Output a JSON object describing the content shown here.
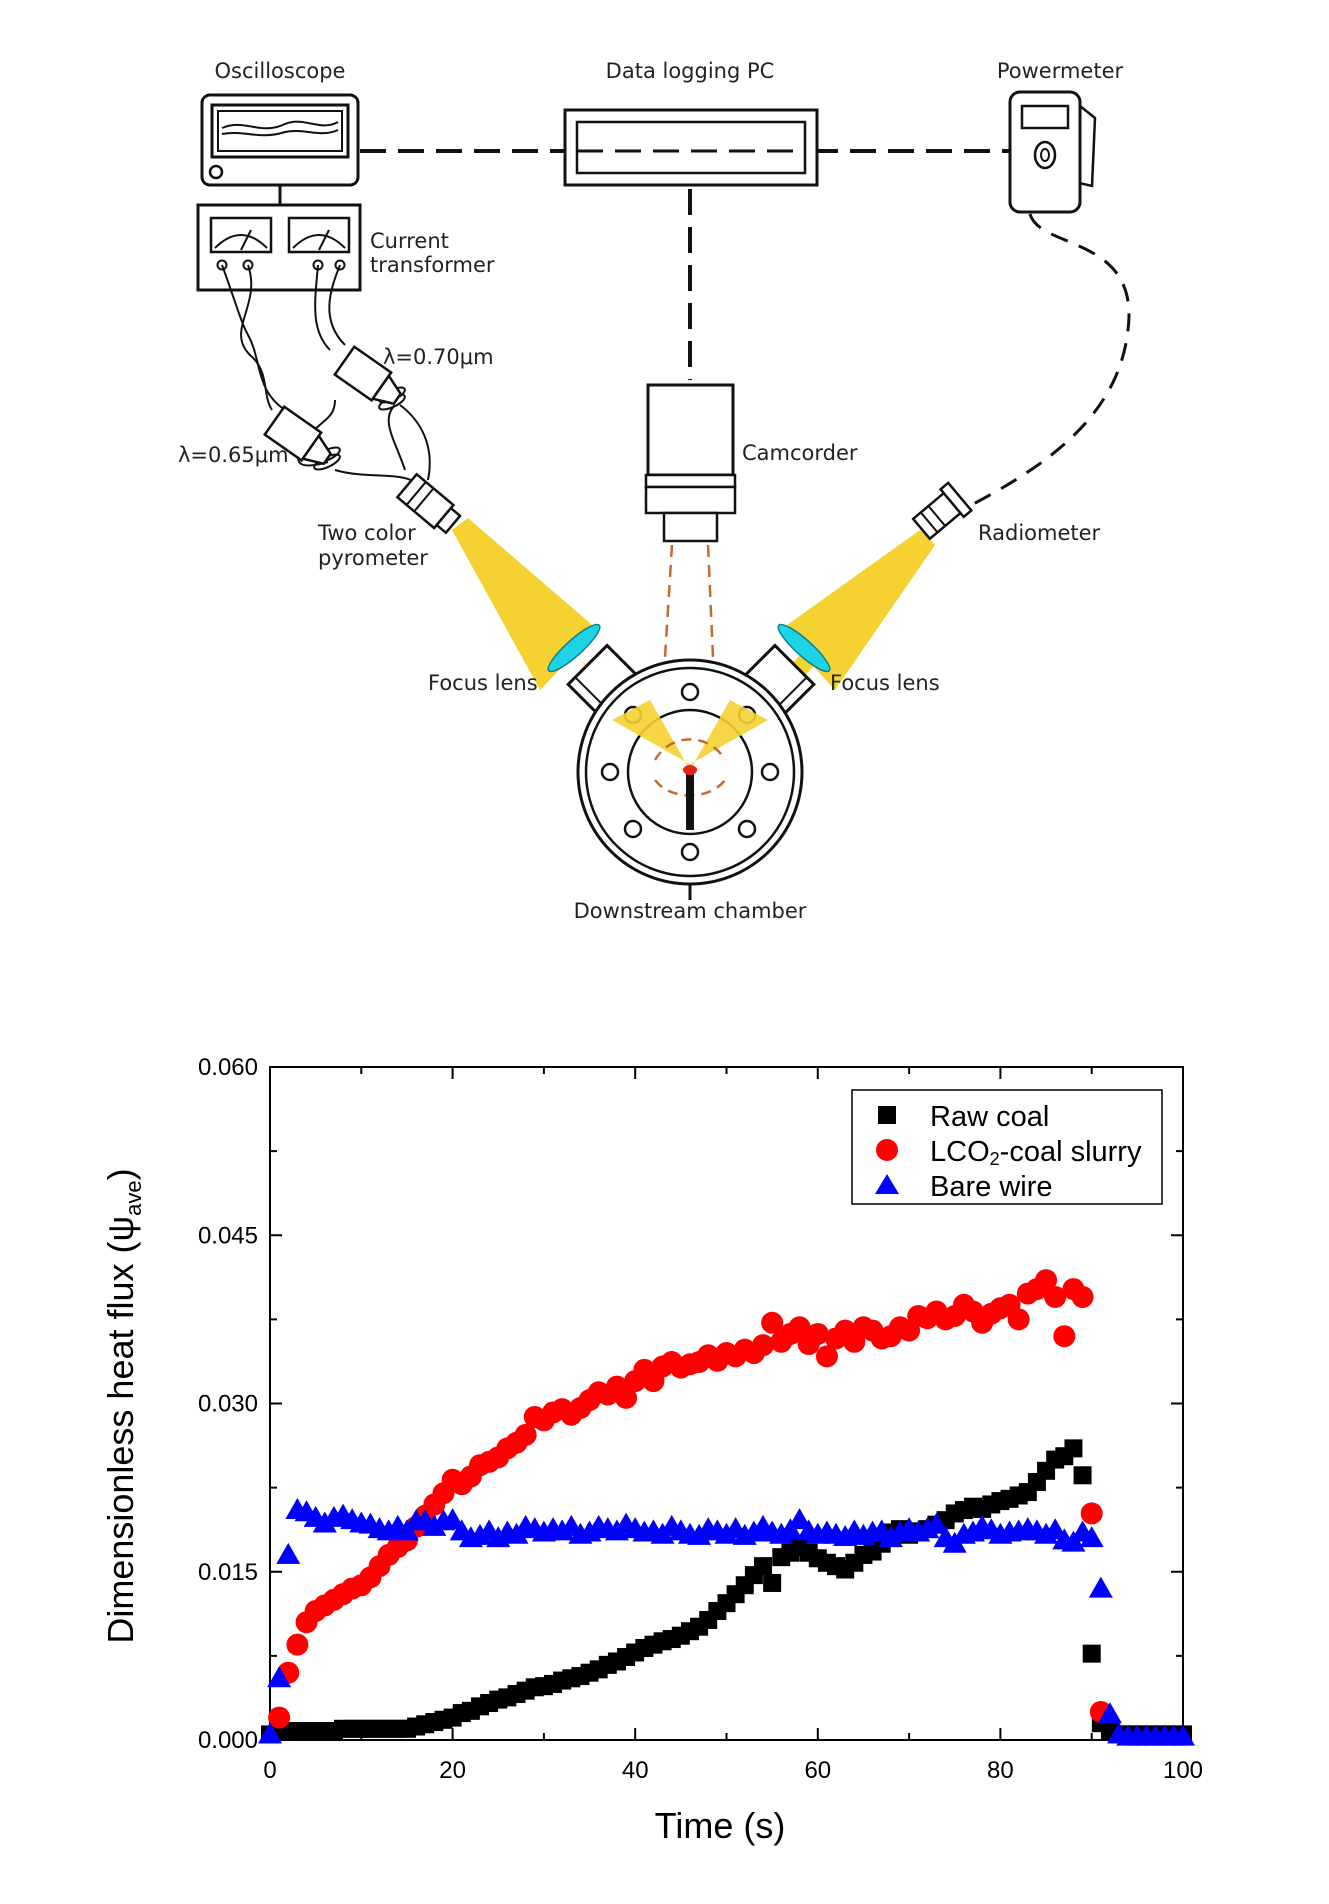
{
  "schematic": {
    "oscilloscope": "Oscilloscope",
    "data_logging_pc": "Data logging PC",
    "powermeter": "Powermeter",
    "current_transformer_line1": "Current",
    "current_transformer_line2": "transformer",
    "lambda_070": "λ=0.70μm",
    "lambda_065": "λ=0.65μm",
    "camcorder": "Camcorder",
    "radiometer": "Radiometer",
    "pyrometer_line1": "Two color",
    "pyrometer_line2": "pyrometer",
    "focus_lens_left": "Focus lens",
    "focus_lens_right": "Focus lens",
    "downstream_chamber": "Downstream chamber"
  },
  "chart_data": {
    "type": "scatter",
    "xlabel": "Time (s)",
    "ylabel_prefix": "Dimensionless heat flux (ψ",
    "ylabel_sub": "ave",
    "ylabel_suffix": ")",
    "xlim": [
      0,
      100
    ],
    "ylim": [
      0,
      0.06
    ],
    "xticks": [
      "0",
      "20",
      "40",
      "60",
      "80",
      "100"
    ],
    "yticks": [
      "0.000",
      "0.015",
      "0.030",
      "0.045",
      "0.060"
    ],
    "legend_position": "top-right",
    "legend_labels": [
      "Raw coal",
      "LCO",
      "2",
      "-coal slurry",
      "Bare wire"
    ],
    "series": [
      {
        "name": "Raw coal",
        "marker": "square",
        "color": "#000000",
        "x": [
          0,
          1,
          2,
          3,
          4,
          5,
          6,
          7,
          8,
          9,
          10,
          11,
          12,
          13,
          14,
          15,
          16,
          17,
          18,
          19,
          20,
          21,
          22,
          23,
          24,
          25,
          26,
          27,
          28,
          29,
          30,
          31,
          32,
          33,
          34,
          35,
          36,
          37,
          38,
          39,
          40,
          41,
          42,
          43,
          44,
          45,
          46,
          47,
          48,
          49,
          50,
          51,
          52,
          53,
          54,
          55,
          56,
          57,
          58,
          59,
          60,
          61,
          62,
          63,
          64,
          65,
          66,
          67,
          68,
          69,
          70,
          71,
          72,
          73,
          74,
          75,
          76,
          77,
          78,
          79,
          80,
          81,
          82,
          83,
          84,
          85,
          86,
          87,
          88,
          89,
          90,
          91,
          92,
          93,
          94,
          95,
          96,
          97,
          98,
          99,
          100
        ],
        "y": [
          0.0005,
          0.0008,
          0.0008,
          0.0008,
          0.0008,
          0.0008,
          0.0008,
          0.0008,
          0.001,
          0.001,
          0.001,
          0.001,
          0.001,
          0.001,
          0.001,
          0.001,
          0.0012,
          0.0014,
          0.0016,
          0.0018,
          0.002,
          0.0024,
          0.0026,
          0.003,
          0.0033,
          0.0036,
          0.0038,
          0.0041,
          0.0044,
          0.0047,
          0.0048,
          0.005,
          0.0053,
          0.0055,
          0.0057,
          0.006,
          0.0063,
          0.0067,
          0.007,
          0.0074,
          0.0078,
          0.0082,
          0.0085,
          0.0088,
          0.009,
          0.0093,
          0.0097,
          0.0101,
          0.0107,
          0.0115,
          0.0122,
          0.013,
          0.0138,
          0.0147,
          0.0155,
          0.014,
          0.0163,
          0.0167,
          0.0172,
          0.0167,
          0.0162,
          0.0158,
          0.0155,
          0.0152,
          0.0158,
          0.0165,
          0.0168,
          0.0175,
          0.0185,
          0.0188,
          0.0183,
          0.0186,
          0.0188,
          0.0192,
          0.0196,
          0.0202,
          0.0205,
          0.0208,
          0.0206,
          0.021,
          0.0213,
          0.0215,
          0.0218,
          0.0221,
          0.023,
          0.024,
          0.025,
          0.0253,
          0.026,
          0.0236,
          0.0077,
          0.0015,
          0.0008,
          0.0005,
          0.0005,
          0.0005,
          0.0005,
          0.0005,
          0.0005,
          0.0005,
          0.0005
        ]
      },
      {
        "name": "LCO2-coal slurry",
        "marker": "circle",
        "color": "#ff0000",
        "x": [
          1,
          2,
          3,
          4,
          5,
          6,
          7,
          8,
          9,
          10,
          11,
          12,
          13,
          14,
          15,
          16,
          17,
          18,
          19,
          20,
          21,
          22,
          23,
          24,
          25,
          26,
          27,
          28,
          29,
          30,
          31,
          32,
          33,
          34,
          35,
          36,
          37,
          38,
          39,
          40,
          41,
          42,
          43,
          44,
          45,
          46,
          47,
          48,
          49,
          50,
          51,
          52,
          53,
          54,
          55,
          56,
          57,
          58,
          59,
          60,
          61,
          62,
          63,
          64,
          65,
          66,
          67,
          68,
          69,
          70,
          71,
          72,
          73,
          74,
          75,
          76,
          77,
          78,
          79,
          80,
          81,
          82,
          83,
          84,
          85,
          86,
          87,
          88,
          89,
          90,
          91
        ],
        "y": [
          0.002,
          0.006,
          0.0085,
          0.0105,
          0.0115,
          0.012,
          0.0125,
          0.013,
          0.0135,
          0.0138,
          0.0145,
          0.0155,
          0.0165,
          0.0172,
          0.0178,
          0.019,
          0.02,
          0.021,
          0.022,
          0.0232,
          0.0228,
          0.0235,
          0.0245,
          0.0248,
          0.0252,
          0.026,
          0.0265,
          0.0272,
          0.0288,
          0.0285,
          0.0292,
          0.0295,
          0.029,
          0.0296,
          0.0303,
          0.031,
          0.0308,
          0.0315,
          0.0305,
          0.032,
          0.033,
          0.032,
          0.0333,
          0.0337,
          0.0332,
          0.0335,
          0.0337,
          0.0343,
          0.0338,
          0.0345,
          0.0342,
          0.0348,
          0.0345,
          0.0352,
          0.0372,
          0.0355,
          0.0362,
          0.0368,
          0.0353,
          0.0362,
          0.0342,
          0.0358,
          0.0365,
          0.0355,
          0.0368,
          0.0365,
          0.0358,
          0.036,
          0.0368,
          0.0365,
          0.0378,
          0.0376,
          0.0382,
          0.0375,
          0.0378,
          0.0388,
          0.0382,
          0.0372,
          0.038,
          0.0385,
          0.0388,
          0.0375,
          0.0398,
          0.0402,
          0.041,
          0.0395,
          0.036,
          0.0402,
          0.0395,
          0.0202,
          0.0025
        ]
      },
      {
        "name": "Bare wire",
        "marker": "triangle",
        "color": "#0000ff",
        "x": [
          0,
          1,
          2,
          3,
          4,
          5,
          6,
          7,
          8,
          9,
          10,
          11,
          12,
          13,
          14,
          15,
          16,
          17,
          18,
          19,
          20,
          21,
          22,
          23,
          24,
          25,
          26,
          27,
          28,
          29,
          30,
          31,
          32,
          33,
          34,
          35,
          36,
          37,
          38,
          39,
          40,
          41,
          42,
          43,
          44,
          45,
          46,
          47,
          48,
          49,
          50,
          51,
          52,
          53,
          54,
          55,
          56,
          57,
          58,
          59,
          60,
          61,
          62,
          63,
          64,
          65,
          66,
          67,
          68,
          69,
          70,
          71,
          72,
          73,
          74,
          75,
          76,
          77,
          78,
          79,
          80,
          81,
          82,
          83,
          84,
          85,
          86,
          87,
          88,
          89,
          90,
          91,
          92,
          93,
          94,
          95,
          96,
          97,
          98,
          99,
          100
        ],
        "y": [
          0.0005,
          0.0055,
          0.0165,
          0.0205,
          0.0203,
          0.0198,
          0.0193,
          0.0198,
          0.02,
          0.0196,
          0.0193,
          0.0192,
          0.0188,
          0.0186,
          0.019,
          0.0186,
          0.0195,
          0.0195,
          0.019,
          0.0195,
          0.0196,
          0.0186,
          0.018,
          0.0182,
          0.0186,
          0.018,
          0.0185,
          0.0183,
          0.019,
          0.0188,
          0.0185,
          0.0188,
          0.0186,
          0.019,
          0.0183,
          0.0185,
          0.019,
          0.0188,
          0.0186,
          0.0192,
          0.0188,
          0.0185,
          0.0186,
          0.0183,
          0.019,
          0.0186,
          0.0183,
          0.0182,
          0.0188,
          0.0186,
          0.0183,
          0.0188,
          0.0182,
          0.0185,
          0.019,
          0.0185,
          0.0183,
          0.0187,
          0.0196,
          0.0186,
          0.0183,
          0.0185,
          0.0183,
          0.0181,
          0.0186,
          0.0182,
          0.0185,
          0.0186,
          0.018,
          0.0185,
          0.0188,
          0.0185,
          0.0188,
          0.0192,
          0.018,
          0.0175,
          0.0183,
          0.0185,
          0.019,
          0.0187,
          0.0183,
          0.0185,
          0.0186,
          0.0188,
          0.0186,
          0.0183,
          0.0187,
          0.0178,
          0.0176,
          0.0185,
          0.018,
          0.0135,
          0.0023,
          0.0005,
          0.0003,
          0.0003,
          0.0003,
          0.0003,
          0.0003,
          0.0003,
          0.0003
        ]
      }
    ]
  },
  "colors": {
    "beam": "#f5d232",
    "lens": "#1fd3e6",
    "camera_ray": "#c8692e",
    "hot_spot": "#e8241a"
  }
}
